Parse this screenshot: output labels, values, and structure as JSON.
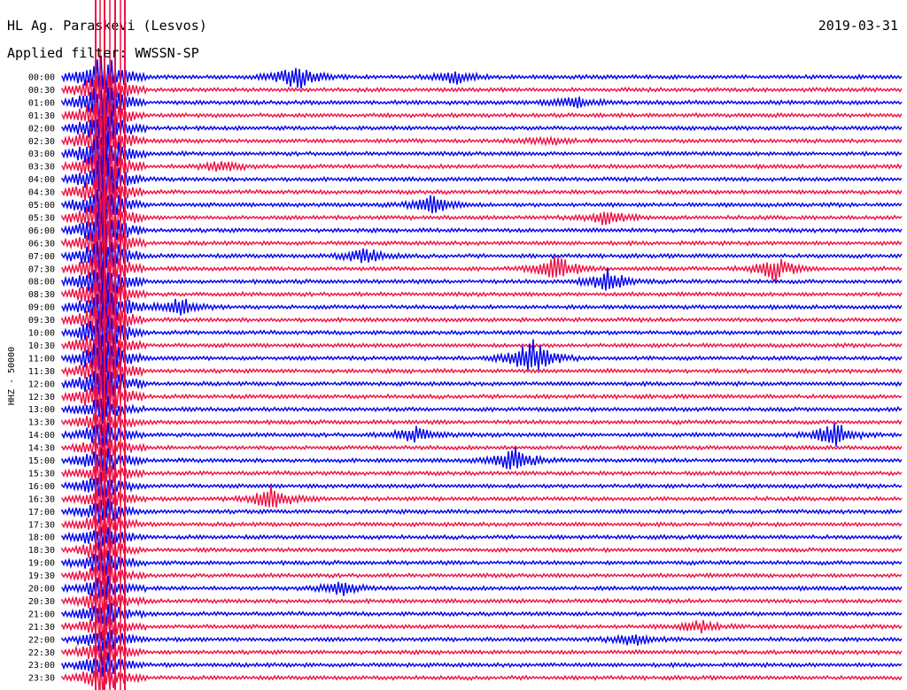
{
  "header": {
    "station": "HL Ag. Paraskevi (Lesvos)",
    "date": "2019-03-31",
    "filter": "Applied filter: WWSSN-SP"
  },
  "chart_data": {
    "type": "line",
    "ylabel": "HHZ - 50000",
    "tick_labels": [
      "00:00",
      "00:30",
      "01:00",
      "01:30",
      "02:00",
      "02:30",
      "03:00",
      "03:30",
      "04:00",
      "04:30",
      "05:00",
      "05:30",
      "06:00",
      "06:30",
      "07:00",
      "07:30",
      "08:00",
      "08:30",
      "09:00",
      "09:30",
      "10:00",
      "10:30",
      "11:00",
      "11:30",
      "12:00",
      "12:30",
      "13:00",
      "13:30",
      "14:00",
      "14:30",
      "15:00",
      "15:30",
      "16:00",
      "16:30",
      "17:00",
      "17:30",
      "18:00",
      "18:30",
      "19:00",
      "19:30",
      "20:00",
      "20:30",
      "21:00",
      "21:30",
      "22:00",
      "22:30",
      "23:00",
      "23:30"
    ],
    "colors": [
      "#0000ee",
      "#ee1144"
    ],
    "events": [
      {
        "row": 0,
        "pos": 0.28,
        "amp": 16
      },
      {
        "row": 0,
        "pos": 0.47,
        "amp": 8
      },
      {
        "row": 2,
        "pos": 0.61,
        "amp": 8
      },
      {
        "row": 5,
        "pos": 0.58,
        "amp": 5
      },
      {
        "row": 7,
        "pos": 0.19,
        "amp": 7
      },
      {
        "row": 10,
        "pos": 0.44,
        "amp": 12
      },
      {
        "row": 11,
        "pos": 0.65,
        "amp": 10
      },
      {
        "row": 14,
        "pos": 0.36,
        "amp": 10
      },
      {
        "row": 15,
        "pos": 0.59,
        "amp": 15
      },
      {
        "row": 15,
        "pos": 0.85,
        "amp": 14
      },
      {
        "row": 16,
        "pos": 0.65,
        "amp": 14
      },
      {
        "row": 18,
        "pos": 0.14,
        "amp": 12
      },
      {
        "row": 22,
        "pos": 0.56,
        "amp": 24
      },
      {
        "row": 28,
        "pos": 0.42,
        "amp": 10
      },
      {
        "row": 28,
        "pos": 0.92,
        "amp": 16
      },
      {
        "row": 30,
        "pos": 0.54,
        "amp": 15
      },
      {
        "row": 33,
        "pos": 0.25,
        "amp": 16
      },
      {
        "row": 40,
        "pos": 0.33,
        "amp": 9
      },
      {
        "row": 43,
        "pos": 0.76,
        "amp": 7
      },
      {
        "row": 44,
        "pos": 0.68,
        "amp": 8
      }
    ],
    "big_event": {
      "start_row": 0,
      "end_row": 47,
      "pos": 0.05,
      "amp": 30
    }
  }
}
